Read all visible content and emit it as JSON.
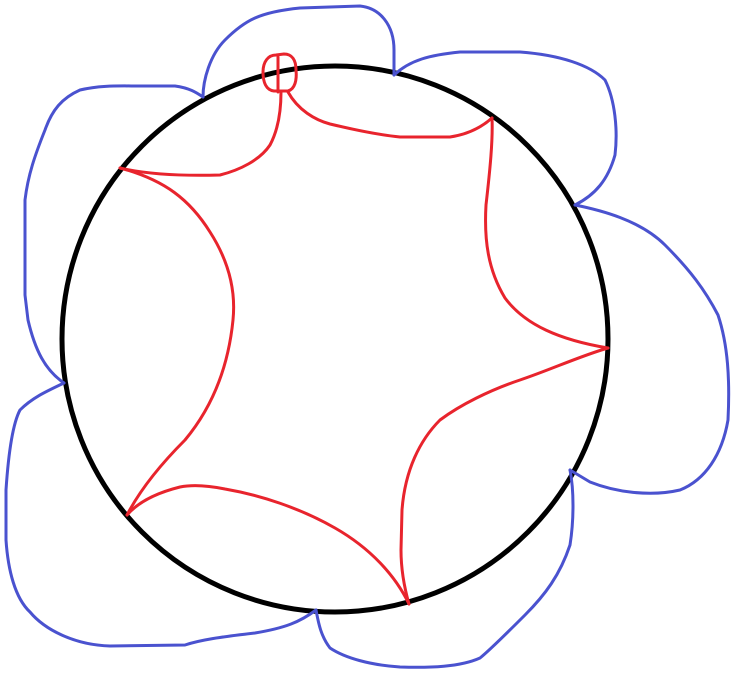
{
  "colors": {
    "background": "#ffffff",
    "circle": "#000000",
    "inner_curves": "#e8242d",
    "outer_loops": "#4a52cf"
  },
  "diagram": {
    "inner_arc_count": 6,
    "outer_loop_count": 6,
    "marked_points_on_circle": 6
  }
}
